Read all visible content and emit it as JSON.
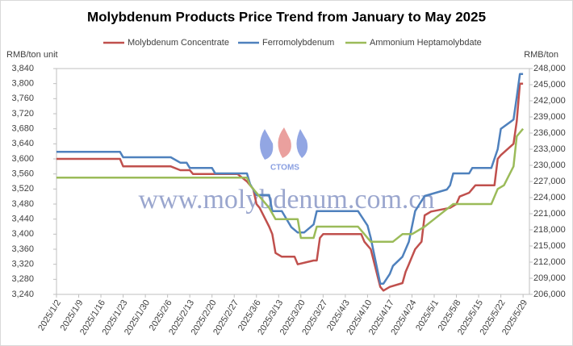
{
  "chart_data": {
    "type": "line",
    "title": "Molybdenum Products Price Trend from January to May 2025",
    "y_label": "RMB/ton unit",
    "y2_label": "RMB/ton",
    "watermark": "www.molybdenum.com.cn",
    "logo_text": "CTOMS",
    "xlim": [
      "2025/1/2",
      "2025/5/31"
    ],
    "xticks": [
      "2025/1/2",
      "2025/1/9",
      "2025/1/16",
      "2025/1/23",
      "2025/1/30",
      "2025/2/6",
      "2025/2/13",
      "2025/2/20",
      "2025/2/27",
      "2025/3/6",
      "2025/3/13",
      "2025/3/20",
      "2025/3/27",
      "2025/4/3",
      "2025/4/10",
      "2025/4/17",
      "2025/4/24",
      "2025/5/1",
      "2025/5/8",
      "2025/5/15",
      "2025/5/22",
      "2025/5/29"
    ],
    "ylim": [
      3240,
      3840
    ],
    "yticks": [
      {
        "value": 3240,
        "label": "3,240"
      },
      {
        "value": 3280,
        "label": "3,280"
      },
      {
        "value": 3320,
        "label": "3,320"
      },
      {
        "value": 3360,
        "label": "3,360"
      },
      {
        "value": 3400,
        "label": "3,400"
      },
      {
        "value": 3440,
        "label": "3,440"
      },
      {
        "value": 3480,
        "label": "3,480"
      },
      {
        "value": 3520,
        "label": "3,520"
      },
      {
        "value": 3560,
        "label": "3,560"
      },
      {
        "value": 3600,
        "label": "3,600"
      },
      {
        "value": 3640,
        "label": "3,640"
      },
      {
        "value": 3680,
        "label": "3,680"
      },
      {
        "value": 3720,
        "label": "3,720"
      },
      {
        "value": 3760,
        "label": "3,760"
      },
      {
        "value": 3800,
        "label": "3,800"
      },
      {
        "value": 3840,
        "label": "3,840"
      }
    ],
    "y2lim": [
      206000,
      248000
    ],
    "y2ticks": [
      {
        "value": 206000,
        "label": "206,000"
      },
      {
        "value": 209000,
        "label": "209,000"
      },
      {
        "value": 212000,
        "label": "212,000"
      },
      {
        "value": 215000,
        "label": "215,000"
      },
      {
        "value": 218000,
        "label": "218,000"
      },
      {
        "value": 221000,
        "label": "221,000"
      },
      {
        "value": 224000,
        "label": "224,000"
      },
      {
        "value": 227000,
        "label": "227,000"
      },
      {
        "value": 230000,
        "label": "230,000"
      },
      {
        "value": 233000,
        "label": "233,000"
      },
      {
        "value": 236000,
        "label": "236,000"
      },
      {
        "value": 239000,
        "label": "239,000"
      },
      {
        "value": 242000,
        "label": "242,000"
      },
      {
        "value": 245000,
        "label": "245,000"
      },
      {
        "value": 248000,
        "label": "248,000"
      }
    ],
    "grid": false,
    "legend": "top",
    "series": [
      {
        "name": "Molybdenum Concentrate",
        "color": "#c0504d",
        "axis": "y",
        "x": [
          "2025/1/2",
          "2025/1/22",
          "2025/1/23",
          "2025/2/7",
          "2025/2/10",
          "2025/2/13",
          "2025/2/14",
          "2025/2/28",
          "2025/3/3",
          "2025/3/4",
          "2025/3/5",
          "2025/3/6",
          "2025/3/7",
          "2025/3/10",
          "2025/3/11",
          "2025/3/12",
          "2025/3/14",
          "2025/3/18",
          "2025/3/19",
          "2025/3/24",
          "2025/3/25",
          "2025/3/26",
          "2025/3/27",
          "2025/4/8",
          "2025/4/9",
          "2025/4/10",
          "2025/4/11",
          "2025/4/14",
          "2025/4/15",
          "2025/4/17",
          "2025/4/21",
          "2025/4/22",
          "2025/4/23",
          "2025/4/24",
          "2025/4/25",
          "2025/4/27",
          "2025/4/28",
          "2025/4/30",
          "2025/5/6",
          "2025/5/8",
          "2025/5/9",
          "2025/5/12",
          "2025/5/13",
          "2025/5/14",
          "2025/5/20",
          "2025/5/21",
          "2025/5/22",
          "2025/5/26",
          "2025/5/27",
          "2025/5/28",
          "2025/5/29"
        ],
        "values": [
          3600,
          3600,
          3580,
          3580,
          3570,
          3570,
          3560,
          3560,
          3540,
          3530,
          3520,
          3480,
          3470,
          3420,
          3400,
          3350,
          3340,
          3340,
          3320,
          3330,
          3330,
          3390,
          3400,
          3400,
          3380,
          3370,
          3360,
          3260,
          3250,
          3260,
          3270,
          3300,
          3320,
          3340,
          3360,
          3380,
          3450,
          3460,
          3470,
          3480,
          3500,
          3510,
          3520,
          3530,
          3530,
          3600,
          3610,
          3640,
          3700,
          3800,
          3800
        ]
      },
      {
        "name": "Ferromolybdenum",
        "color": "#4f81bd",
        "axis": "y2",
        "x": [
          "2025/1/2",
          "2025/1/22",
          "2025/1/23",
          "2025/2/7",
          "2025/2/10",
          "2025/2/12",
          "2025/2/13",
          "2025/2/20",
          "2025/2/21",
          "2025/3/3",
          "2025/3/4",
          "2025/3/6",
          "2025/3/10",
          "2025/3/11",
          "2025/3/14",
          "2025/3/17",
          "2025/3/19",
          "2025/3/21",
          "2025/3/24",
          "2025/3/25",
          "2025/4/7",
          "2025/4/10",
          "2025/4/11",
          "2025/4/14",
          "2025/4/15",
          "2025/4/17",
          "2025/4/18",
          "2025/4/21",
          "2025/4/23",
          "2025/4/25",
          "2025/4/28",
          "2025/5/5",
          "2025/5/6",
          "2025/5/7",
          "2025/5/12",
          "2025/5/13",
          "2025/5/19",
          "2025/5/21",
          "2025/5/22",
          "2025/5/26",
          "2025/5/27",
          "2025/5/28",
          "2025/5/29"
        ],
        "values": [
          232500,
          232500,
          231500,
          231500,
          230500,
          230500,
          229500,
          229500,
          228500,
          228500,
          226500,
          224500,
          224500,
          221500,
          221500,
          218500,
          217500,
          217500,
          219000,
          221500,
          221500,
          218800,
          216500,
          208000,
          208000,
          209800,
          211300,
          213000,
          215800,
          221500,
          224300,
          225500,
          226300,
          228500,
          228500,
          229500,
          229500,
          233000,
          236800,
          238500,
          242700,
          247000,
          247000
        ]
      },
      {
        "name": "Ammonium Heptamolybdate",
        "color": "#9bbb59",
        "axis": "y",
        "x": [
          "2025/1/2",
          "2025/3/3",
          "2025/3/4",
          "2025/3/7",
          "2025/3/10",
          "2025/3/12",
          "2025/3/19",
          "2025/3/20",
          "2025/3/24",
          "2025/3/25",
          "2025/4/7",
          "2025/4/9",
          "2025/4/11",
          "2025/4/18",
          "2025/4/21",
          "2025/4/24",
          "2025/4/28",
          "2025/5/1",
          "2025/5/7",
          "2025/5/19",
          "2025/5/21",
          "2025/5/23",
          "2025/5/26",
          "2025/5/27",
          "2025/5/29"
        ],
        "values": [
          3550,
          3550,
          3530,
          3500,
          3470,
          3440,
          3440,
          3390,
          3390,
          3420,
          3420,
          3400,
          3380,
          3380,
          3400,
          3400,
          3420,
          3440,
          3480,
          3480,
          3520,
          3530,
          3580,
          3660,
          3680
        ]
      }
    ]
  }
}
